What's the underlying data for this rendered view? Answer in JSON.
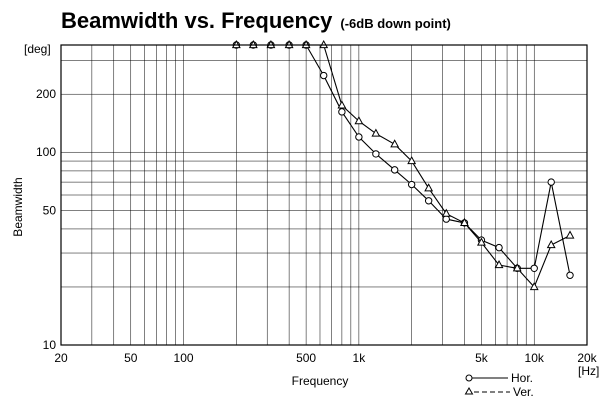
{
  "chart_data": {
    "type": "line",
    "title": "Beamwidth vs. Frequency",
    "subtitle": "(-6dB down point)",
    "xlabel": "Frequency",
    "ylabel": "Beamwidth",
    "x_unit": "[Hz]",
    "y_unit": "[deg]",
    "x_scale": "log",
    "y_scale": "log",
    "xlim": [
      20,
      20000
    ],
    "ylim": [
      10,
      360
    ],
    "grid": true,
    "legend_position": "bottom-right",
    "x_ticks": [
      {
        "value": 20,
        "label": "20"
      },
      {
        "value": 50,
        "label": "50"
      },
      {
        "value": 100,
        "label": "100"
      },
      {
        "value": 500,
        "label": "500"
      },
      {
        "value": 1000,
        "label": "1k"
      },
      {
        "value": 5000,
        "label": "5k"
      },
      {
        "value": 10000,
        "label": "10k"
      },
      {
        "value": 20000,
        "label": "20k"
      }
    ],
    "y_ticks": [
      {
        "value": 10,
        "label": "10"
      },
      {
        "value": 50,
        "label": "50"
      },
      {
        "value": 100,
        "label": "100"
      },
      {
        "value": 200,
        "label": "200"
      }
    ],
    "series": [
      {
        "name": "Hor.",
        "marker": "circle",
        "line_style": "solid",
        "x": [
          200,
          250,
          315,
          400,
          500,
          630,
          800,
          1000,
          1250,
          1600,
          2000,
          2500,
          3150,
          4000,
          5000,
          6300,
          8000,
          10000,
          12500,
          16000
        ],
        "y": [
          360,
          360,
          360,
          360,
          360,
          250,
          162,
          120,
          98,
          81,
          68,
          56,
          45,
          43,
          35,
          32,
          25,
          25,
          70,
          23
        ]
      },
      {
        "name": "Ver.",
        "marker": "triangle",
        "line_style": "dashed",
        "x": [
          200,
          250,
          315,
          400,
          500,
          630,
          800,
          1000,
          1250,
          1600,
          2000,
          2500,
          3150,
          4000,
          5000,
          6300,
          8000,
          10000,
          12500,
          16000
        ],
        "y": [
          360,
          360,
          360,
          360,
          360,
          360,
          175,
          145,
          125,
          110,
          90,
          65,
          48,
          43,
          34,
          26,
          25,
          20,
          33,
          37
        ]
      }
    ]
  }
}
